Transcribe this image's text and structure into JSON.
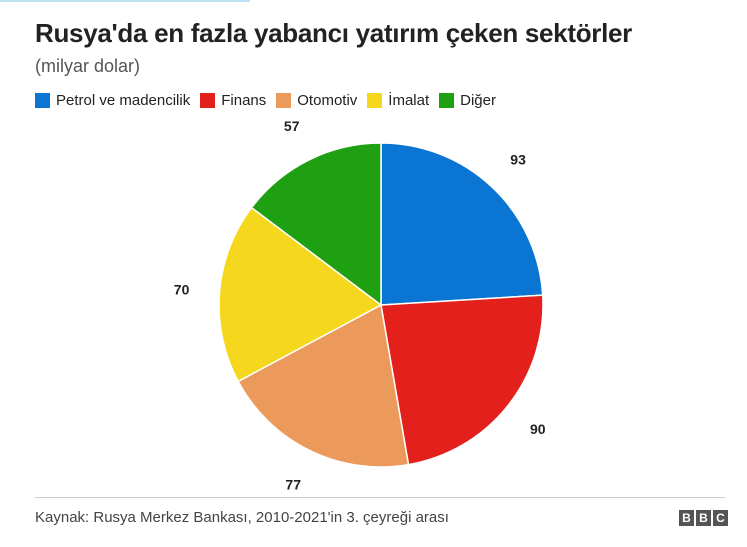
{
  "title": "Rusya'da en fazla yabancı yatırım çeken sektörler",
  "subtitle": "(milyar dolar)",
  "source": "Kaynak: Rusya Merkez Bankası, 2010-2021'in 3. çeyreği arası",
  "logo": [
    "B",
    "B",
    "C"
  ],
  "chart_data": {
    "type": "pie",
    "title": "Rusya'da en fazla yabancı yatırım çeken sektörler",
    "subtitle": "(milyar dolar)",
    "legend_position": "top-left",
    "categories": [
      "Petrol ve madencilik",
      "Finans",
      "Otomotiv",
      "İmalat",
      "Diğer"
    ],
    "values": [
      93,
      90,
      77,
      70,
      57
    ],
    "labels": [
      "93",
      "90",
      "77",
      "70",
      "57"
    ],
    "colors": [
      "#0a75d2",
      "#e3201b",
      "#eb9a5c",
      "#f5d81e",
      "#1fa012"
    ]
  }
}
